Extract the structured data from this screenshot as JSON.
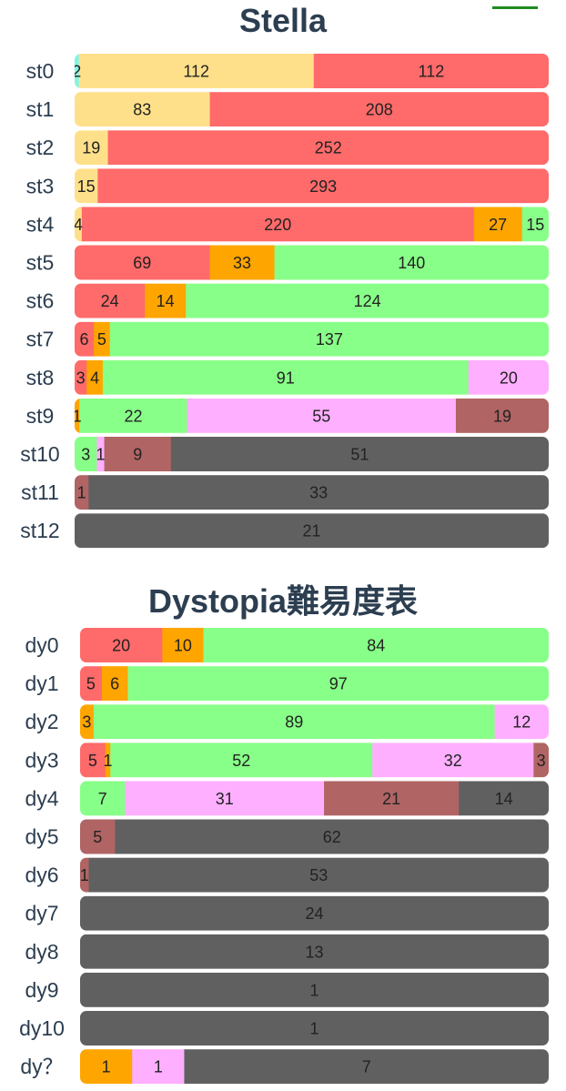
{
  "colors": {
    "cyan": "#7ff5ea",
    "yellow": "#ffe08a",
    "red": "#ff6a6a",
    "orange": "#ffa500",
    "green": "#88ff88",
    "pink": "#ffafff",
    "brown": "#b06464",
    "gray": "#606060"
  },
  "chart_data": [
    {
      "type": "bar",
      "orientation": "horizontal-stacked-100",
      "title": "Stella",
      "rows": [
        {
          "label": "st0",
          "segments": [
            {
              "color": "cyan",
              "value": 2
            },
            {
              "color": "yellow",
              "value": 112
            },
            {
              "color": "red",
              "value": 112
            }
          ]
        },
        {
          "label": "st1",
          "segments": [
            {
              "color": "yellow",
              "value": 83
            },
            {
              "color": "red",
              "value": 208
            }
          ]
        },
        {
          "label": "st2",
          "segments": [
            {
              "color": "yellow",
              "value": 19
            },
            {
              "color": "red",
              "value": 252
            }
          ]
        },
        {
          "label": "st3",
          "segments": [
            {
              "color": "yellow",
              "value": 15
            },
            {
              "color": "red",
              "value": 293
            }
          ]
        },
        {
          "label": "st4",
          "segments": [
            {
              "color": "yellow",
              "value": 4
            },
            {
              "color": "red",
              "value": 220
            },
            {
              "color": "orange",
              "value": 27
            },
            {
              "color": "green",
              "value": 15
            }
          ]
        },
        {
          "label": "st5",
          "segments": [
            {
              "color": "red",
              "value": 69
            },
            {
              "color": "orange",
              "value": 33
            },
            {
              "color": "green",
              "value": 140
            }
          ]
        },
        {
          "label": "st6",
          "segments": [
            {
              "color": "red",
              "value": 24
            },
            {
              "color": "orange",
              "value": 14
            },
            {
              "color": "green",
              "value": 124
            }
          ]
        },
        {
          "label": "st7",
          "segments": [
            {
              "color": "red",
              "value": 6
            },
            {
              "color": "orange",
              "value": 5
            },
            {
              "color": "green",
              "value": 137
            }
          ]
        },
        {
          "label": "st8",
          "segments": [
            {
              "color": "red",
              "value": 3
            },
            {
              "color": "orange",
              "value": 4
            },
            {
              "color": "green",
              "value": 91
            },
            {
              "color": "pink",
              "value": 20
            }
          ]
        },
        {
          "label": "st9",
          "segments": [
            {
              "color": "orange",
              "value": 1
            },
            {
              "color": "green",
              "value": 22
            },
            {
              "color": "pink",
              "value": 55
            },
            {
              "color": "brown",
              "value": 19
            }
          ]
        },
        {
          "label": "st10",
          "segments": [
            {
              "color": "green",
              "value": 3
            },
            {
              "color": "pink",
              "value": 1
            },
            {
              "color": "brown",
              "value": 9
            },
            {
              "color": "gray",
              "value": 51
            }
          ]
        },
        {
          "label": "st11",
          "segments": [
            {
              "color": "brown",
              "value": 1
            },
            {
              "color": "gray",
              "value": 33
            }
          ]
        },
        {
          "label": "st12",
          "segments": [
            {
              "color": "gray",
              "value": 21
            }
          ]
        }
      ]
    },
    {
      "type": "bar",
      "orientation": "horizontal-stacked-100",
      "title": "Dystopia難易度表",
      "rows": [
        {
          "label": "dy0",
          "segments": [
            {
              "color": "red",
              "value": 20
            },
            {
              "color": "orange",
              "value": 10
            },
            {
              "color": "green",
              "value": 84
            }
          ]
        },
        {
          "label": "dy1",
          "segments": [
            {
              "color": "red",
              "value": 5
            },
            {
              "color": "orange",
              "value": 6
            },
            {
              "color": "green",
              "value": 97
            }
          ]
        },
        {
          "label": "dy2",
          "segments": [
            {
              "color": "orange",
              "value": 3
            },
            {
              "color": "green",
              "value": 89
            },
            {
              "color": "pink",
              "value": 12
            }
          ]
        },
        {
          "label": "dy3",
          "segments": [
            {
              "color": "red",
              "value": 5
            },
            {
              "color": "orange",
              "value": 1
            },
            {
              "color": "green",
              "value": 52
            },
            {
              "color": "pink",
              "value": 32
            },
            {
              "color": "brown",
              "value": 3
            }
          ]
        },
        {
          "label": "dy4",
          "segments": [
            {
              "color": "green",
              "value": 7
            },
            {
              "color": "pink",
              "value": 31
            },
            {
              "color": "brown",
              "value": 21
            },
            {
              "color": "gray",
              "value": 14
            }
          ]
        },
        {
          "label": "dy5",
          "segments": [
            {
              "color": "brown",
              "value": 5
            },
            {
              "color": "gray",
              "value": 62
            }
          ]
        },
        {
          "label": "dy6",
          "segments": [
            {
              "color": "brown",
              "value": 1
            },
            {
              "color": "gray",
              "value": 53
            }
          ]
        },
        {
          "label": "dy7",
          "segments": [
            {
              "color": "gray",
              "value": 24
            }
          ]
        },
        {
          "label": "dy8",
          "segments": [
            {
              "color": "gray",
              "value": 13
            }
          ]
        },
        {
          "label": "dy9",
          "segments": [
            {
              "color": "gray",
              "value": 1
            }
          ]
        },
        {
          "label": "dy10",
          "segments": [
            {
              "color": "gray",
              "value": 1
            }
          ]
        },
        {
          "label": "dy？",
          "segments": [
            {
              "color": "orange",
              "value": 1
            },
            {
              "color": "pink",
              "value": 1
            },
            {
              "color": "gray",
              "value": 7
            }
          ]
        }
      ]
    }
  ]
}
